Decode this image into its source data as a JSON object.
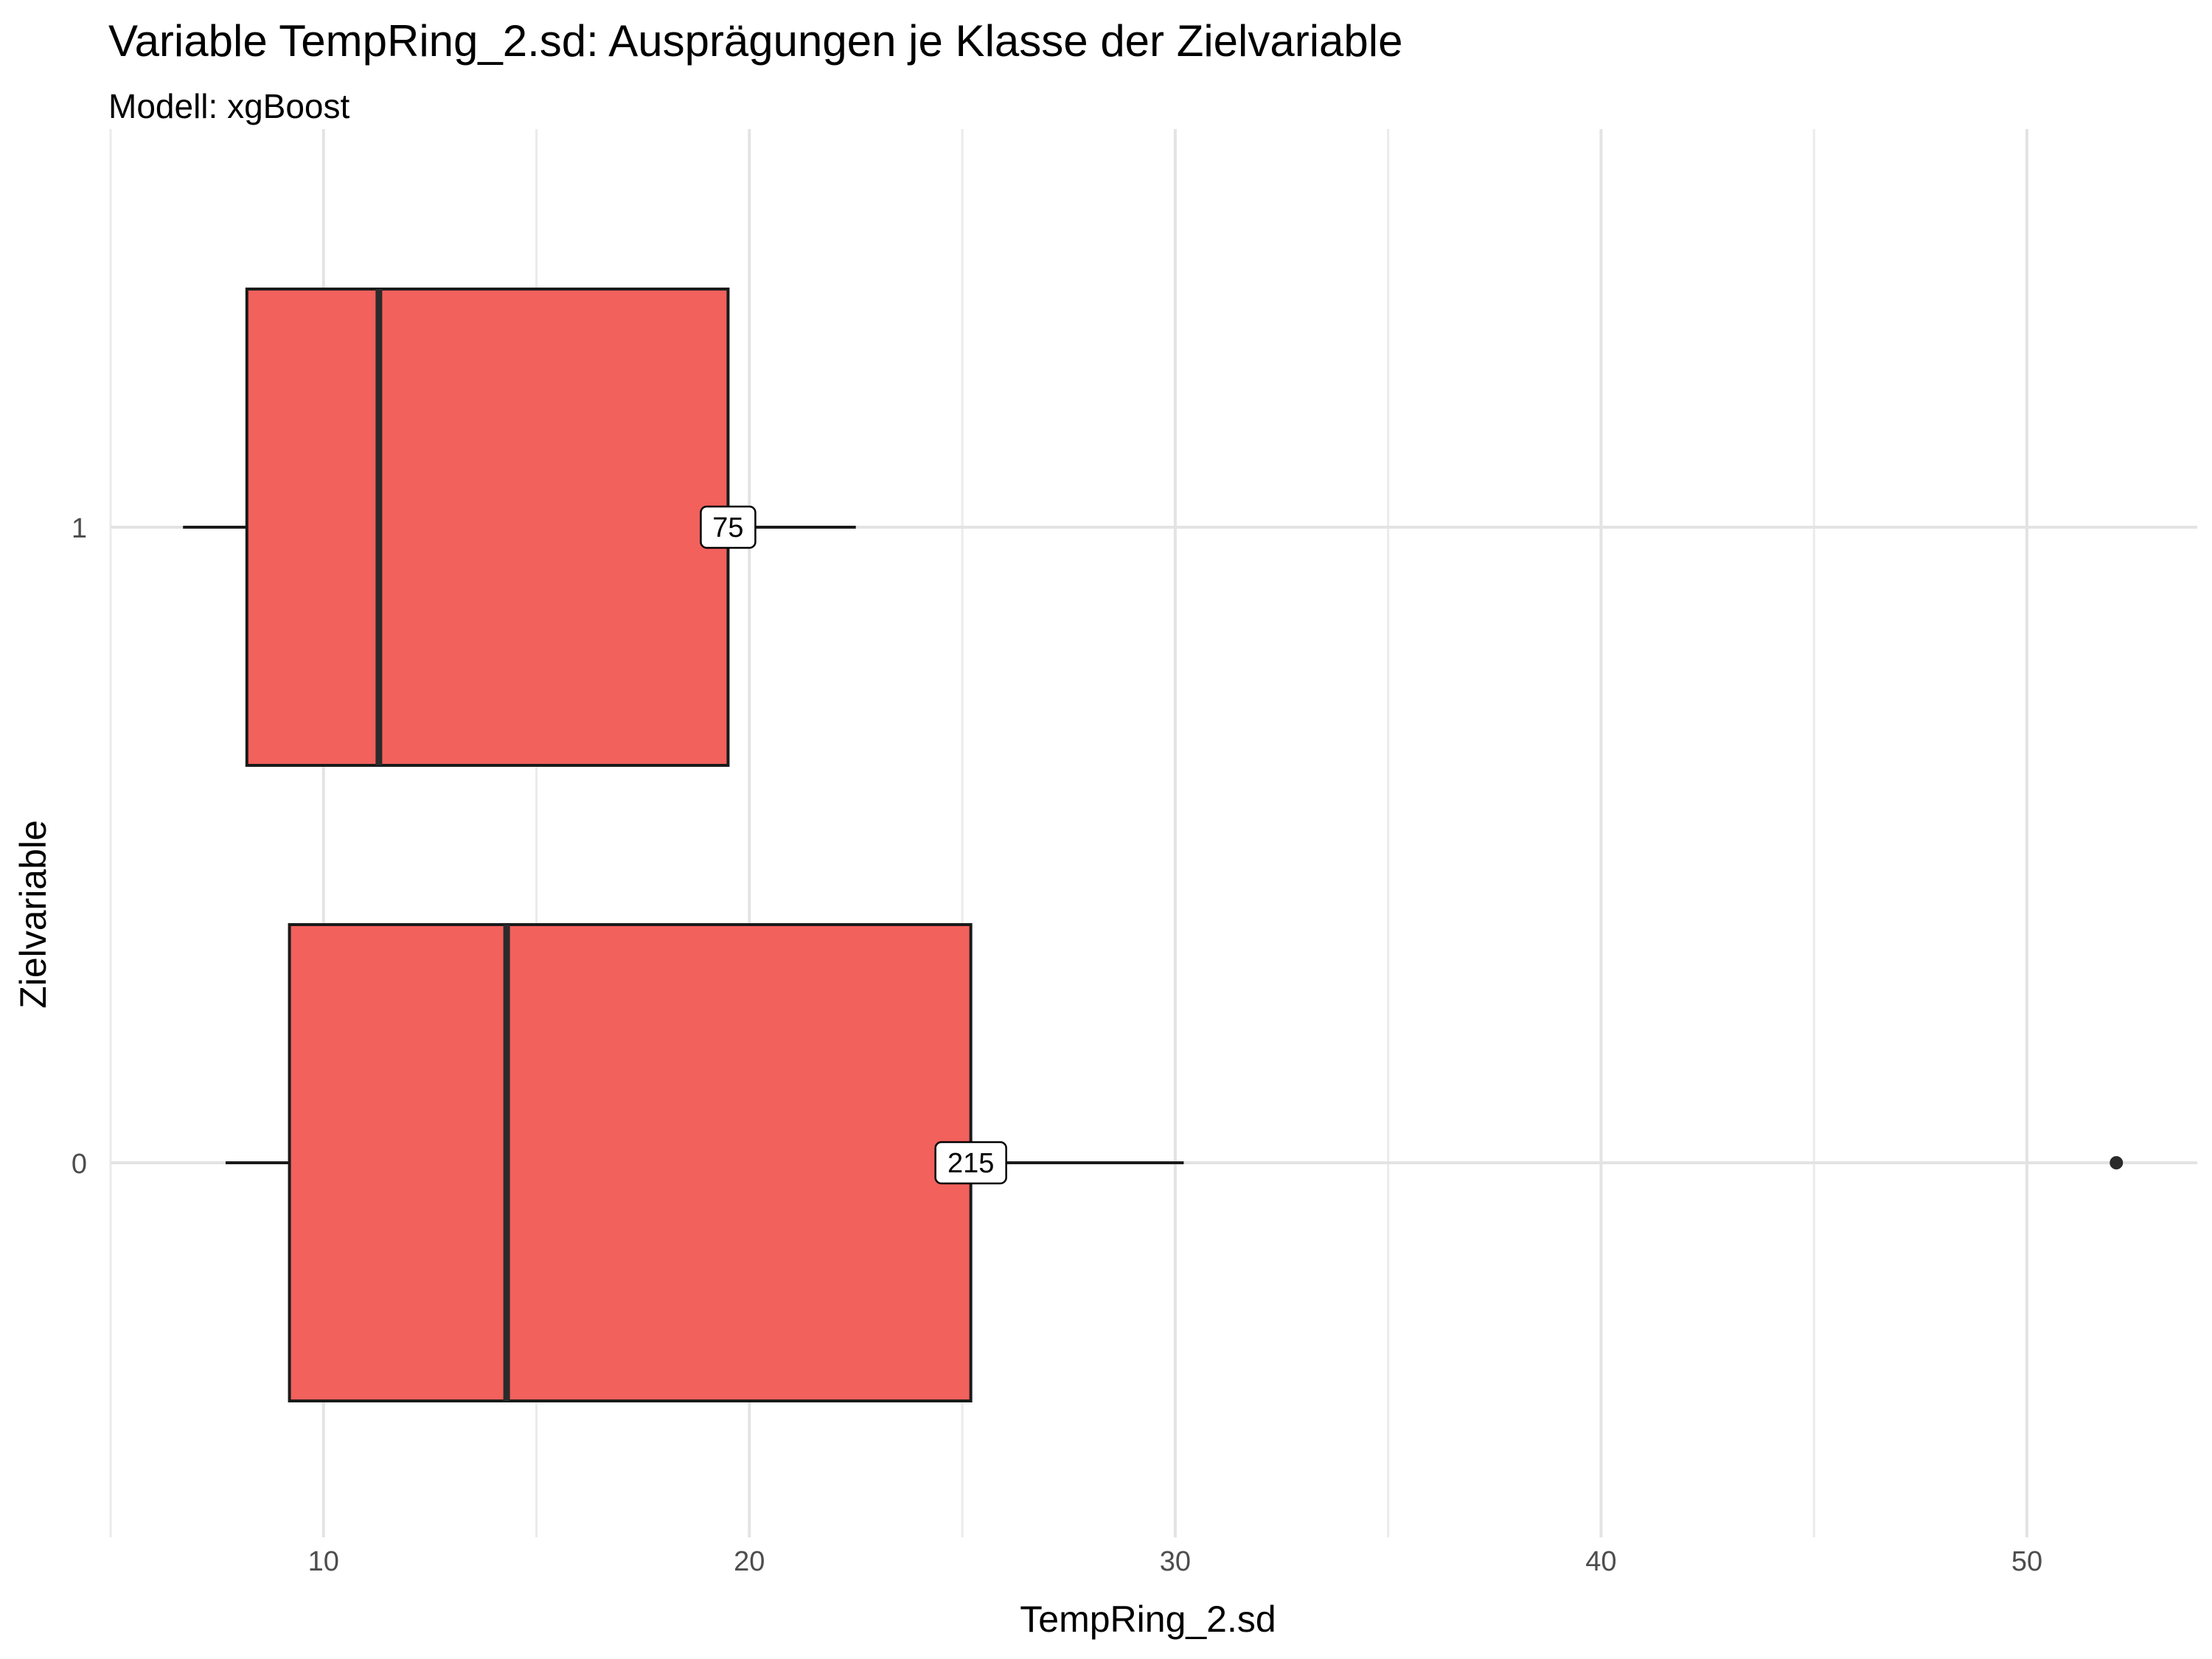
{
  "chart_data": {
    "type": "boxplot",
    "title": "Variable TempRing_2.sd: Ausprägungen je Klasse der Zielvariable",
    "subtitle": "Modell: xgBoost",
    "xlabel": "TempRing_2.sd",
    "ylabel": "Zielvariable",
    "orientation": "horizontal",
    "xlim": [
      5,
      54
    ],
    "x_ticks": [
      10,
      20,
      30,
      40,
      50
    ],
    "grid": true,
    "legend": "none",
    "fill_color": "#F2615C",
    "stroke_color": "#1a1a1a",
    "categories": [
      "1",
      "0"
    ],
    "boxes": [
      {
        "category": "1",
        "whisker_low": 6.7,
        "q1": 8.2,
        "median": 11.3,
        "q3": 19.5,
        "whisker_high": 22.5,
        "outliers": [],
        "count_label": "75"
      },
      {
        "category": "0",
        "whisker_low": 7.7,
        "q1": 9.2,
        "median": 14.3,
        "q3": 25.2,
        "whisker_high": 30.2,
        "outliers": [
          52.1
        ],
        "count_label": "215"
      }
    ]
  }
}
